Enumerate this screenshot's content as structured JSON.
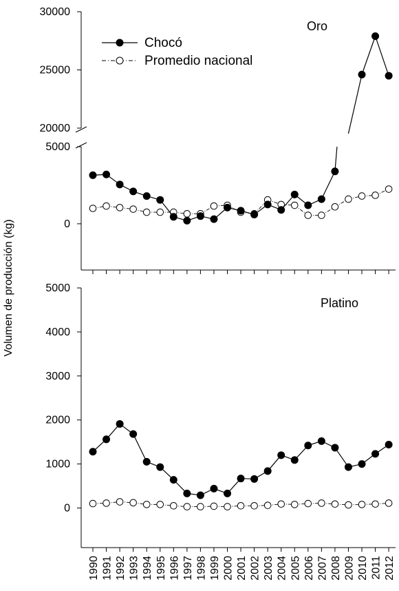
{
  "chart_data": {
    "type": "line",
    "ylabel": "Volumen de producción (kg)",
    "x": [
      "1990",
      "1991",
      "1992",
      "1993",
      "1994",
      "1995",
      "1996",
      "1997",
      "1998",
      "1999",
      "2000",
      "2001",
      "2002",
      "2003",
      "2004",
      "2005",
      "2006",
      "2007",
      "2008",
      "2009",
      "2010",
      "2011",
      "2012"
    ],
    "legend": {
      "position": "top-left",
      "entries": [
        "Chocó",
        "Promedio nacional"
      ]
    },
    "panels": [
      {
        "name": "Oro",
        "axis_break": true,
        "y_ticks_lower": [
          "0",
          "5000"
        ],
        "y_ticks_upper": [
          "20000",
          "25000",
          "30000"
        ],
        "ylim_lower": [
          -3000,
          5000
        ],
        "ylim_upper": [
          20000,
          30000
        ],
        "series": [
          {
            "name": "Chocó",
            "marker": "filled-circle",
            "line": "solid",
            "values": [
              3150,
              3200,
              2550,
              2100,
              1800,
              1550,
              450,
              200,
              500,
              300,
              1050,
              850,
              600,
              1250,
              900,
              1900,
              1200,
              1600,
              3400,
              19000,
              24600,
              27900,
              24500
            ]
          },
          {
            "name": "Promedio nacional",
            "marker": "open-circle",
            "line": "dash-dot",
            "values": [
              1000,
              1150,
              1050,
              950,
              750,
              750,
              750,
              650,
              650,
              1150,
              1200,
              750,
              650,
              1550,
              1250,
              1200,
              550,
              550,
              1100,
              1600,
              1800,
              1850,
              2250
            ]
          }
        ]
      },
      {
        "name": "Platino",
        "y_ticks": [
          "0",
          "1000",
          "2000",
          "3000",
          "4000",
          "5000"
        ],
        "ylim": [
          -900,
          5000
        ],
        "series": [
          {
            "name": "Chocó",
            "marker": "filled-circle",
            "line": "solid",
            "values": [
              1280,
              1560,
              1910,
              1680,
              1050,
              930,
              640,
              330,
              290,
              440,
              330,
              670,
              660,
              840,
              1200,
              1090,
              1420,
              1520,
              1370,
              930,
              1000,
              1230,
              1440
            ]
          },
          {
            "name": "Promedio nacional",
            "marker": "open-circle",
            "line": "dash-dot",
            "values": [
              100,
              110,
              140,
              120,
              80,
              80,
              50,
              30,
              30,
              40,
              30,
              50,
              50,
              60,
              90,
              80,
              100,
              110,
              90,
              70,
              80,
              90,
              110
            ]
          }
        ]
      }
    ]
  }
}
